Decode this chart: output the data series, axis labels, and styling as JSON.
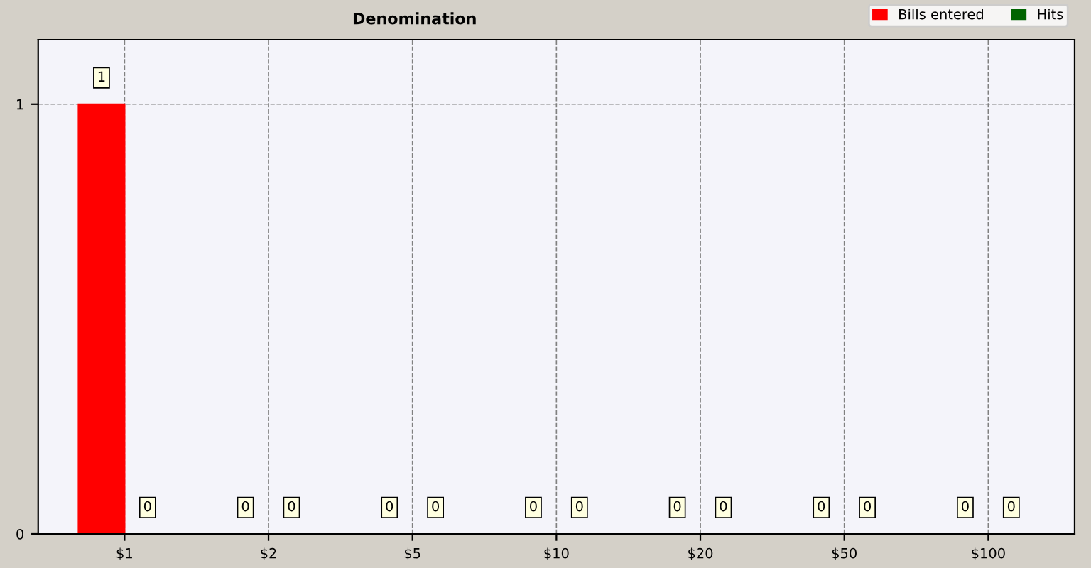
{
  "chart_data": {
    "type": "bar",
    "title": "Denomination",
    "categories": [
      "$1",
      "$2",
      "$5",
      "$10",
      "$20",
      "$50",
      "$100"
    ],
    "series": [
      {
        "name": "Bills entered",
        "color": "#ff0000",
        "values": [
          1,
          0,
          0,
          0,
          0,
          0,
          0
        ]
      },
      {
        "name": "Hits",
        "color": "#006400",
        "values": [
          0,
          0,
          0,
          0,
          0,
          0,
          0
        ]
      }
    ],
    "ylim": [
      0,
      1.15
    ],
    "yticks": [
      0,
      1
    ],
    "grid": true,
    "legend": "top right",
    "data_labels": true
  }
}
